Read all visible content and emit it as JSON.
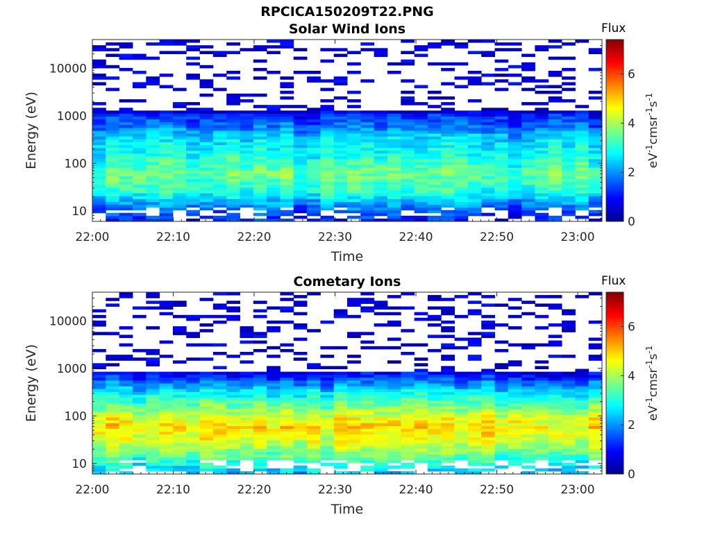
{
  "figure_title": "RPCICA150209T22.PNG",
  "colors": {
    "colormap": "jet",
    "axis": "#262626",
    "empty_background": "#ffffff"
  },
  "chart_data": [
    {
      "type": "heatmap",
      "title": "Solar Wind Ions",
      "xlabel": "Time",
      "ylabel": "Energy (eV)",
      "x_range": [
        "22:00",
        "23:03"
      ],
      "x_ticks": [
        "22:00",
        "22:10",
        "22:20",
        "22:30",
        "22:40",
        "22:50",
        "23:00"
      ],
      "y_scale": "log",
      "y_range": [
        6,
        40000
      ],
      "y_ticks": [
        10,
        100,
        1000,
        10000
      ],
      "y_tick_labels": [
        "10",
        "100",
        "1000",
        "10000"
      ],
      "colorbar": {
        "title": "Flux",
        "label": "eV-1cm-2sr-1s-1",
        "range": [
          0,
          7.4
        ],
        "ticks": [
          0,
          2,
          4,
          6
        ],
        "tick_labels": [
          "0",
          "2",
          "4",
          "6"
        ]
      },
      "flux_profile": {
        "energy_eV": [
          6,
          10,
          15,
          25,
          40,
          60,
          100,
          150,
          250,
          400,
          600,
          1000,
          1200
        ],
        "log_flux": [
          1.0,
          1.5,
          2.0,
          2.9,
          3.2,
          3.4,
          3.1,
          2.8,
          2.6,
          2.3,
          1.6,
          1.2,
          0.6
        ]
      },
      "sparse_high_energy": true,
      "grid": false
    },
    {
      "type": "heatmap",
      "title": "Cometary Ions",
      "xlabel": "Time",
      "ylabel": "Energy (eV)",
      "x_range": [
        "22:00",
        "23:03"
      ],
      "x_ticks": [
        "22:00",
        "22:10",
        "22:20",
        "22:30",
        "22:40",
        "22:50",
        "23:00"
      ],
      "y_scale": "log",
      "y_range": [
        6,
        40000
      ],
      "y_ticks": [
        10,
        100,
        1000,
        10000
      ],
      "y_tick_labels": [
        "10",
        "100",
        "1000",
        "10000"
      ],
      "colorbar": {
        "title": "Flux",
        "label": "eV-1cm-2sr-1s-1",
        "range": [
          0,
          7.4
        ],
        "ticks": [
          0,
          2,
          4,
          6
        ],
        "tick_labels": [
          "0",
          "2",
          "4",
          "6"
        ]
      },
      "flux_profile": {
        "energy_eV": [
          6,
          10,
          15,
          25,
          40,
          60,
          80,
          120,
          200,
          300,
          500,
          800
        ],
        "log_flux": [
          2.2,
          2.9,
          3.5,
          4.1,
          4.6,
          4.8,
          4.6,
          4.0,
          3.3,
          2.8,
          1.8,
          0.8
        ]
      },
      "sparse_high_energy": true,
      "grid": false
    }
  ]
}
